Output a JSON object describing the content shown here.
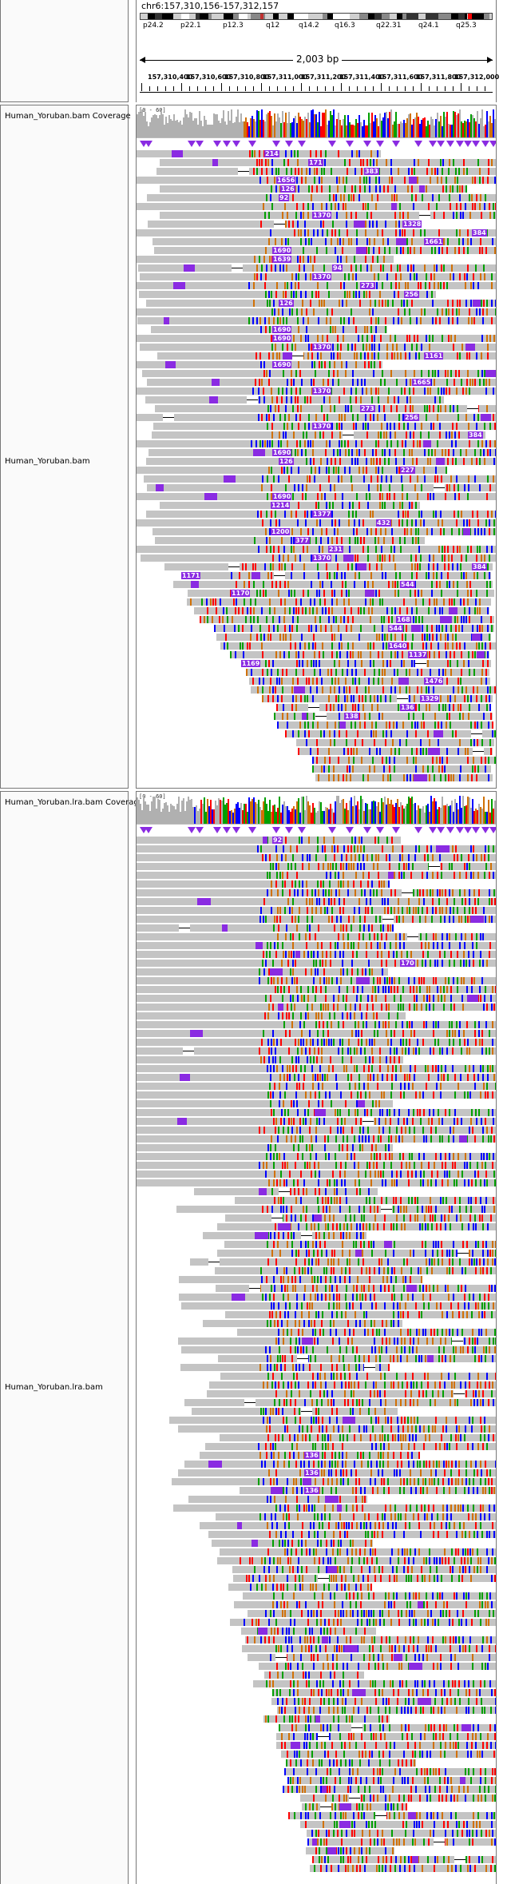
{
  "locus": "chr6:157,310,156-157,312,157",
  "cytobands": [
    "p24.2",
    "p22.1",
    "p12.3",
    "q12",
    "q14.2",
    "q16.3",
    "q22.31",
    "q24.1",
    "q25.3"
  ],
  "ruler": {
    "span_label": "2,003 bp",
    "tick_labels": [
      "157,310,400",
      "157,310,600",
      "157,310,800",
      "157,311,000",
      "157,311,200",
      "157,311,400",
      "157,311,600",
      "157,311,800",
      "157,312,000"
    ]
  },
  "tracks": [
    {
      "coverage_name": "Human_Yoruban.bam Coverage",
      "coverage_range": "[0 - 60]",
      "alignment_name": "Human_Yoruban.bam",
      "insertion_labels": [
        "214",
        "171",
        "383",
        "1656",
        "126",
        "92",
        "1370",
        "1328",
        "384",
        "1661",
        "1690",
        "1639",
        "94",
        "1370",
        "273",
        "256",
        "126",
        "1690",
        "1690",
        "1370",
        "1161",
        "1690",
        "1665",
        "1370",
        "273",
        "256",
        "1370",
        "384",
        "1690",
        "126",
        "227",
        "1690",
        "1214",
        "1377",
        "432",
        "1200",
        "377",
        "231",
        "1370",
        "384",
        "1171",
        "544",
        "1170",
        "168",
        "544",
        "1640",
        "1137",
        "1169",
        "1476",
        "1329",
        "136",
        "138"
      ]
    },
    {
      "coverage_name": "Human_Yoruban.lra.bam Coverage",
      "coverage_range": "[0 - 60]",
      "alignment_name": "Human_Yoruban.lra.bam",
      "insertion_labels": [
        "92",
        "170",
        "136",
        "136",
        "136"
      ]
    }
  ],
  "colors": {
    "read": "#c4c4c4",
    "insertion": "#8a2be2",
    "base_A": "#00a000",
    "base_C": "#0000ff",
    "base_G": "#d17105",
    "base_T": "#ff0000"
  }
}
